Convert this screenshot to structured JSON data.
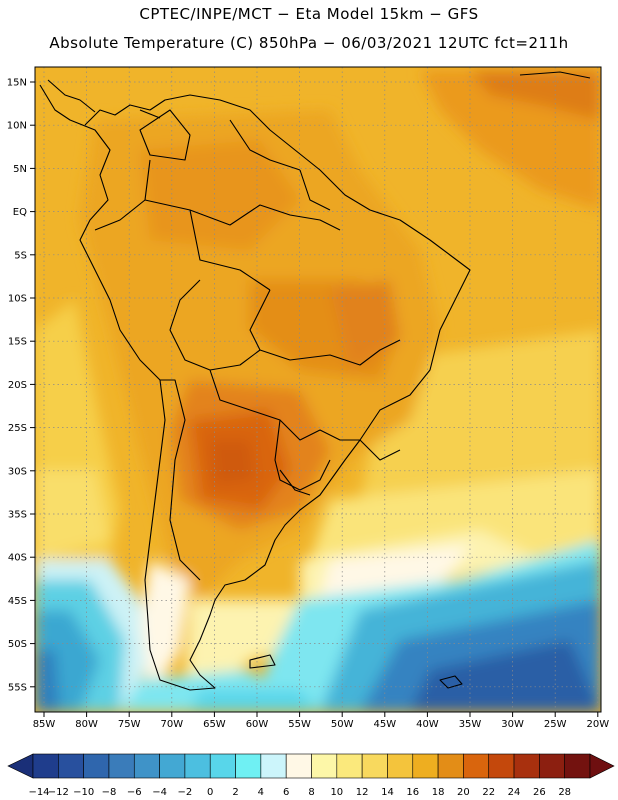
{
  "header": {
    "title_line1": "CPTEC/INPE/MCT −   Eta Model 15km − GFS",
    "title_line2": "Absolute Temperature (C) 850hPa − 06/03/2021 12UTC fct=211h"
  },
  "map": {
    "lat_labels": [
      "15N",
      "10N",
      "5N",
      "EQ",
      "5S",
      "10S",
      "15S",
      "20S",
      "25S",
      "30S",
      "35S",
      "40S",
      "45S",
      "50S",
      "55S"
    ],
    "lon_labels": [
      "85W",
      "80W",
      "75W",
      "70W",
      "65W",
      "60W",
      "55W",
      "50W",
      "45W",
      "40W",
      "35W",
      "30W",
      "25W",
      "20W"
    ]
  },
  "colorbar": {
    "labels": [
      "-14",
      "-12",
      "-10",
      "-8",
      "-6",
      "-4",
      "-2",
      "0",
      "2",
      "4",
      "6",
      "8",
      "10",
      "12",
      "14",
      "16",
      "18",
      "20",
      "22",
      "24",
      "26",
      "28"
    ],
    "colors": [
      "#1f3d8c",
      "#28509e",
      "#2f66ad",
      "#3a7cba",
      "#3f93c8",
      "#43a8d3",
      "#4cbfe0",
      "#58d6ea",
      "#6ff0f3",
      "#ccf5fb",
      "#fff8e6",
      "#fdf7a8",
      "#fbe97c",
      "#f8d95e",
      "#f4c43c",
      "#eeae20",
      "#e38d17",
      "#d9650d",
      "#c4480c",
      "#a8300e",
      "#8c1f10",
      "#73120f"
    ]
  }
}
